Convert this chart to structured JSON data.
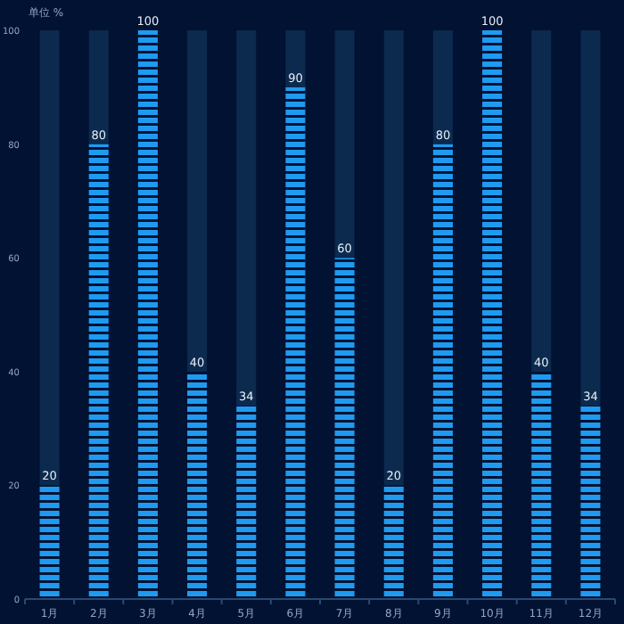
{
  "chart_data": {
    "type": "bar",
    "stacked": true,
    "ylabel": "单位 %",
    "categories": [
      "1月",
      "2月",
      "3月",
      "4月",
      "5月",
      "6月",
      "7月",
      "8月",
      "9月",
      "10月",
      "11月",
      "12月"
    ],
    "series": [
      {
        "color": "#1e9bf0",
        "values": [
          20,
          80,
          100,
          40,
          34,
          90,
          60,
          20,
          80,
          100,
          40,
          34
        ],
        "value_labels": [
          "20",
          "80",
          "100",
          "40",
          "34",
          "90",
          "60",
          "20",
          "80",
          "100",
          "40",
          "34"
        ]
      },
      {
        "color": "#0b2a4e",
        "values": [
          80,
          20,
          0,
          60,
          66,
          10,
          40,
          80,
          20,
          0,
          60,
          66
        ]
      }
    ],
    "ylim": [
      0,
      100
    ],
    "yticks": [
      0,
      20,
      40,
      60,
      80,
      100
    ],
    "grid": false
  }
}
